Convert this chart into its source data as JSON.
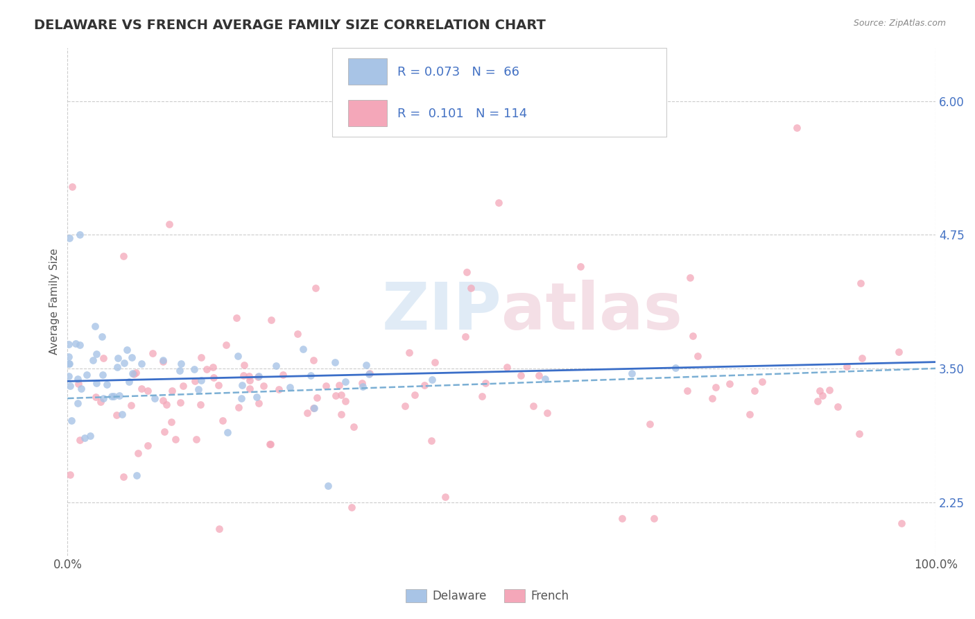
{
  "title": "DELAWARE VS FRENCH AVERAGE FAMILY SIZE CORRELATION CHART",
  "source_text": "Source: ZipAtlas.com",
  "ylabel": "Average Family Size",
  "xlim": [
    0.0,
    1.0
  ],
  "ylim": [
    1.75,
    6.5
  ],
  "yticks": [
    2.25,
    3.5,
    4.75,
    6.0
  ],
  "yticklabels_color": "#4472C4",
  "delaware_color": "#A8C4E6",
  "french_color": "#F4A7B9",
  "delaware_line_color": "#3A6EC8",
  "french_line_color": "#E06080",
  "legend_R1": "0.073",
  "legend_N1": "66",
  "legend_R2": "0.101",
  "legend_N2": "114",
  "title_fontsize": 14,
  "axis_label_fontsize": 11,
  "tick_fontsize": 12,
  "background_color": "#ffffff",
  "grid_color": "#cccccc",
  "delaware_N": 66,
  "french_N": 114,
  "delaware_intercept": 3.38,
  "delaware_slope": 0.18,
  "french_intercept": 3.22,
  "french_slope": 0.28
}
